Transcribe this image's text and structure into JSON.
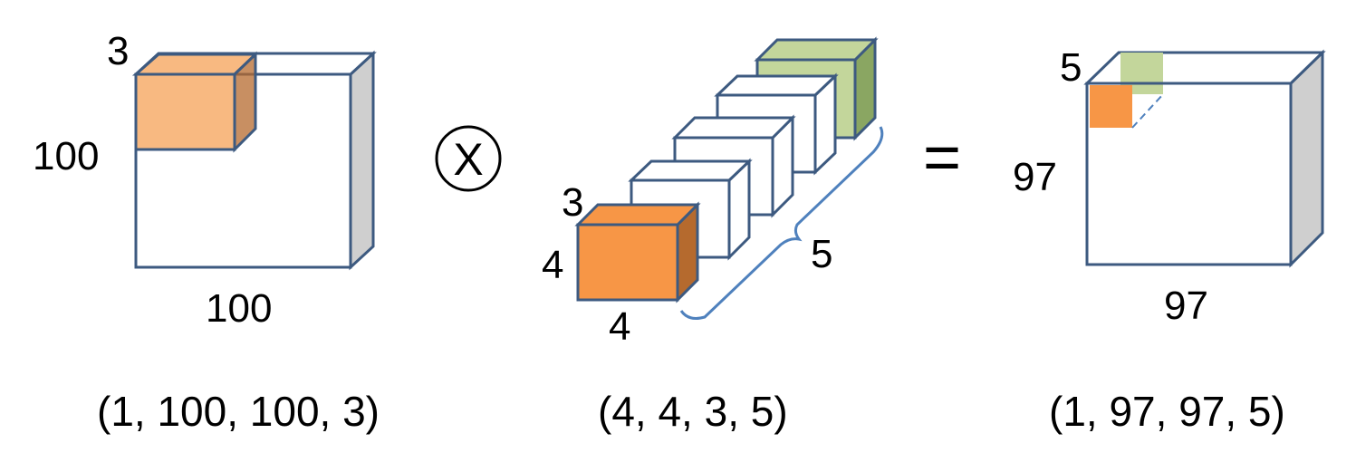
{
  "colors": {
    "outline": "#3d5a80",
    "side_gray": "#cfcfcf",
    "orange": "#f79646",
    "orange_light": "#f8b981",
    "orange_dark": "#b56a2e",
    "green": "#c3d69b",
    "green_dark": "#8aa662",
    "brace": "#4f81bd"
  },
  "operators": {
    "convolve": "X",
    "equals": "="
  },
  "input": {
    "depth_label": "3",
    "height_label": "100",
    "width_label": "100",
    "shape_label": "(1, 100, 100, 3)"
  },
  "filters": {
    "depth_label": "3",
    "height_label": "4",
    "width_label": "4",
    "count_label": "5",
    "shape_label": "(4, 4, 3, 5)"
  },
  "output": {
    "depth_label": "5",
    "height_label": "97",
    "width_label": "97",
    "shape_label": "(1, 97, 97, 5)"
  }
}
